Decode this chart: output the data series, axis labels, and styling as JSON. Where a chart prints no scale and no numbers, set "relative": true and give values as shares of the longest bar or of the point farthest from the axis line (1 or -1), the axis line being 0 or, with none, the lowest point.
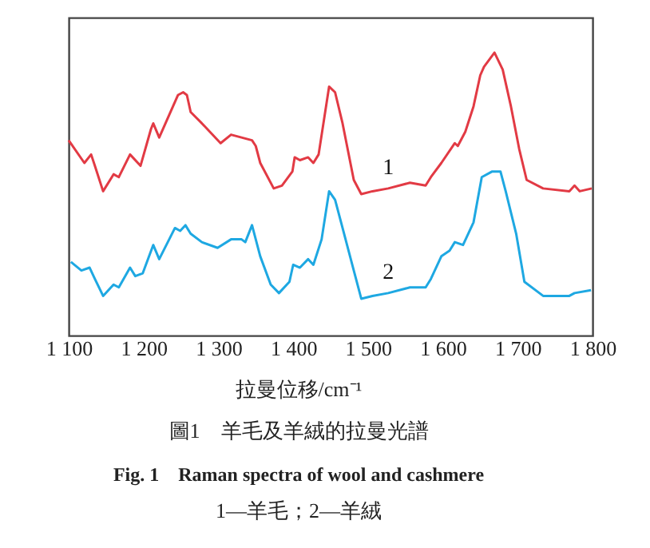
{
  "chart_data": {
    "type": "line",
    "relative": true,
    "xlabel": "拉曼位移/cm⁻¹",
    "xlim": [
      1100,
      1800
    ],
    "xticks": [
      {
        "value": 1100,
        "label": "1 100"
      },
      {
        "value": 1200,
        "label": "1 200"
      },
      {
        "value": 1300,
        "label": "1 300"
      },
      {
        "value": 1400,
        "label": "1 400"
      },
      {
        "value": 1500,
        "label": "1 500"
      },
      {
        "value": 1600,
        "label": "1 600"
      },
      {
        "value": 1700,
        "label": "1 700"
      },
      {
        "value": 1800,
        "label": "1 800"
      }
    ],
    "grid": false,
    "marker": "none",
    "line_style": "solid",
    "tick_labels": "x",
    "series": [
      {
        "name": "1",
        "color": "#e23a44",
        "x": [
          1100,
          1121,
          1130,
          1135,
          1146,
          1160,
          1167,
          1182,
          1196,
          1210,
          1213,
          1221,
          1246,
          1253,
          1258,
          1263,
          1278,
          1303,
          1317,
          1331,
          1345,
          1350,
          1356,
          1374,
          1385,
          1399,
          1402,
          1409,
          1420,
          1427,
          1434,
          1448,
          1456,
          1466,
          1481,
          1491,
          1506,
          1527,
          1556,
          1577,
          1584,
          1598,
          1616,
          1620,
          1630,
          1641,
          1650,
          1655,
          1669,
          1680,
          1691,
          1702,
          1712,
          1734,
          1769,
          1776,
          1783,
          1799
        ],
        "values": [
          0.69,
          0.61,
          0.64,
          0.6,
          0.51,
          0.57,
          0.56,
          0.64,
          0.6,
          0.73,
          0.75,
          0.7,
          0.85,
          0.86,
          0.85,
          0.79,
          0.75,
          0.68,
          0.71,
          0.7,
          0.69,
          0.67,
          0.61,
          0.52,
          0.53,
          0.58,
          0.63,
          0.62,
          0.63,
          0.61,
          0.64,
          0.88,
          0.86,
          0.75,
          0.55,
          0.5,
          0.51,
          0.52,
          0.54,
          0.53,
          0.56,
          0.61,
          0.68,
          0.67,
          0.72,
          0.81,
          0.92,
          0.95,
          1.0,
          0.94,
          0.81,
          0.66,
          0.55,
          0.52,
          0.51,
          0.53,
          0.51,
          0.52
        ]
      },
      {
        "name": "2",
        "color": "#1ea8e2",
        "x": [
          1103,
          1117,
          1128,
          1135,
          1146,
          1160,
          1167,
          1182,
          1189,
          1199,
          1213,
          1221,
          1242,
          1249,
          1256,
          1263,
          1278,
          1299,
          1317,
          1331,
          1336,
          1345,
          1356,
          1370,
          1381,
          1395,
          1400,
          1409,
          1420,
          1427,
          1438,
          1448,
          1456,
          1466,
          1481,
          1491,
          1506,
          1527,
          1556,
          1577,
          1584,
          1598,
          1609,
          1616,
          1627,
          1641,
          1652,
          1666,
          1677,
          1684,
          1698,
          1709,
          1734,
          1769,
          1776,
          1798
        ],
        "values": [
          0.26,
          0.23,
          0.24,
          0.2,
          0.14,
          0.18,
          0.17,
          0.24,
          0.21,
          0.22,
          0.32,
          0.27,
          0.38,
          0.37,
          0.39,
          0.36,
          0.33,
          0.31,
          0.34,
          0.34,
          0.33,
          0.39,
          0.28,
          0.18,
          0.15,
          0.19,
          0.25,
          0.24,
          0.27,
          0.25,
          0.34,
          0.51,
          0.48,
          0.38,
          0.23,
          0.13,
          0.14,
          0.15,
          0.17,
          0.17,
          0.2,
          0.28,
          0.3,
          0.33,
          0.32,
          0.4,
          0.56,
          0.58,
          0.58,
          0.51,
          0.36,
          0.19,
          0.14,
          0.14,
          0.15,
          0.16
        ]
      }
    ],
    "annotations": [
      "圖1　羊毛及羊絨的拉曼光譜",
      "Fig. 1　Raman spectra of wool and cashmere",
      "1—羊毛；2—羊絨"
    ]
  }
}
